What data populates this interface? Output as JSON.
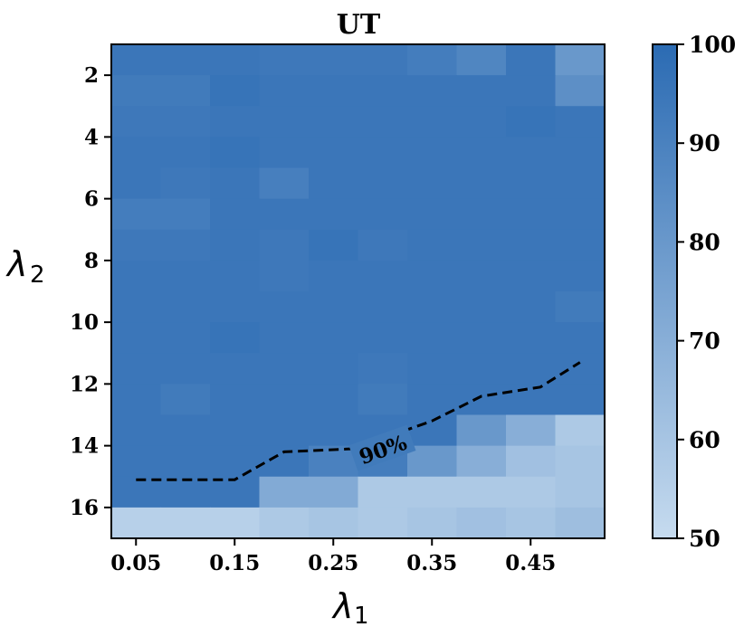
{
  "chart_data": {
    "type": "heatmap",
    "title": "UT",
    "xlabel": "λ1",
    "ylabel": "λ2",
    "x_tick_labels": [
      "0.05",
      "0.15",
      "0.25",
      "0.35",
      "0.45"
    ],
    "x_values": [
      0.05,
      0.1,
      0.15,
      0.2,
      0.25,
      0.3,
      0.35,
      0.4,
      0.45,
      0.5
    ],
    "y_tick_labels": [
      "2",
      "4",
      "6",
      "8",
      "10",
      "12",
      "14",
      "16"
    ],
    "y_values": [
      1.5,
      2.5,
      3.5,
      4.5,
      5.5,
      6.5,
      7.5,
      8.5,
      9.5,
      10.5,
      11.5,
      12.5,
      13.5,
      14.5,
      15.5,
      16.5
    ],
    "colorbar": {
      "min": 50,
      "max": 100,
      "tick_labels": [
        "50",
        "60",
        "70",
        "80",
        "90",
        "100"
      ],
      "ticks": [
        50,
        60,
        70,
        80,
        90,
        100
      ]
    },
    "colors": {
      "low": "#c6dbef",
      "high": "#2b6bb3"
    },
    "values": [
      [
        95,
        95,
        95,
        94,
        94,
        94,
        92,
        88,
        95,
        80
      ],
      [
        93,
        93,
        96,
        95,
        95,
        95,
        95,
        95,
        95,
        84
      ],
      [
        94,
        94,
        95,
        95,
        95,
        95,
        95,
        95,
        96,
        95
      ],
      [
        95,
        95,
        96,
        95,
        95,
        95,
        95,
        95,
        95,
        95
      ],
      [
        95,
        94,
        95,
        91,
        95,
        95,
        95,
        95,
        95,
        95
      ],
      [
        92,
        92,
        95,
        95,
        95,
        95,
        95,
        95,
        95,
        95
      ],
      [
        94,
        94,
        95,
        94,
        96,
        94,
        95,
        95,
        95,
        95
      ],
      [
        95,
        95,
        95,
        94,
        95,
        95,
        95,
        95,
        95,
        95
      ],
      [
        95,
        95,
        95,
        95,
        95,
        95,
        95,
        95,
        95,
        93
      ],
      [
        95,
        95,
        96,
        95,
        95,
        95,
        95,
        95,
        95,
        95
      ],
      [
        95,
        95,
        95,
        95,
        95,
        94,
        95,
        95,
        95,
        95
      ],
      [
        95,
        93,
        95,
        95,
        95,
        93,
        95,
        95,
        95,
        95
      ],
      [
        95,
        95,
        95,
        95,
        95,
        95,
        95,
        80,
        70,
        58
      ],
      [
        95,
        95,
        95,
        95,
        90,
        92,
        80,
        70,
        62,
        60
      ],
      [
        95,
        95,
        95,
        72,
        72,
        58,
        58,
        58,
        58,
        60
      ],
      [
        55,
        55,
        55,
        58,
        60,
        58,
        60,
        62,
        60,
        63
      ]
    ],
    "contour": {
      "level_label": "90%",
      "style": "dashed",
      "points": [
        [
          0.05,
          15.1
        ],
        [
          0.15,
          15.1
        ],
        [
          0.2,
          14.2
        ],
        [
          0.27,
          14.1
        ],
        [
          0.35,
          13.2
        ],
        [
          0.4,
          12.4
        ],
        [
          0.46,
          12.1
        ],
        [
          0.5,
          11.3
        ]
      ]
    }
  }
}
